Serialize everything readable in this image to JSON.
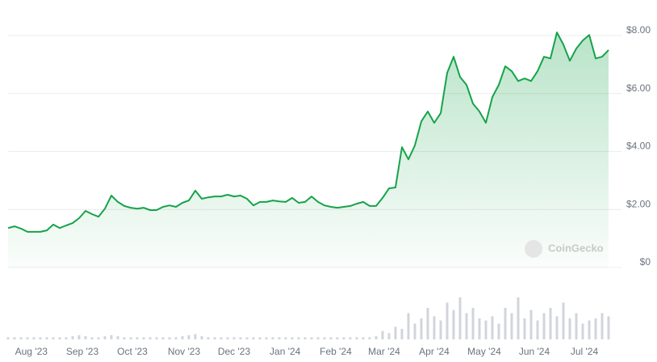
{
  "chart_data": {
    "type": "line",
    "color": "#16a34a",
    "grid": true,
    "watermark": "CoinGecko",
    "ylim": [
      0,
      8
    ],
    "yticks": [
      {
        "value": 0,
        "label": "$0"
      },
      {
        "value": 2,
        "label": "$2.00"
      },
      {
        "value": 4,
        "label": "$4.00"
      },
      {
        "value": 6,
        "label": "$6.00"
      },
      {
        "value": 8,
        "label": "$8.00"
      }
    ],
    "xlim": [
      0,
      93
    ],
    "xticks": [
      {
        "value": 3.6,
        "label": "Aug '23"
      },
      {
        "value": 11.5,
        "label": "Sep '23"
      },
      {
        "value": 19.25,
        "label": "Oct '23"
      },
      {
        "value": 27.25,
        "label": "Nov '23"
      },
      {
        "value": 35,
        "label": "Dec '23"
      },
      {
        "value": 42.9,
        "label": "Jan '24"
      },
      {
        "value": 50.75,
        "label": "Feb '24"
      },
      {
        "value": 58.25,
        "label": "Mar '24"
      },
      {
        "value": 66,
        "label": "Apr '24"
      },
      {
        "value": 73.75,
        "label": "May '24"
      },
      {
        "value": 81.5,
        "label": "Jun '24"
      },
      {
        "value": 89.25,
        "label": "Jul '24"
      }
    ],
    "values": [
      1.36,
      1.42,
      1.34,
      1.23,
      1.23,
      1.23,
      1.28,
      1.48,
      1.36,
      1.45,
      1.53,
      1.7,
      1.95,
      1.84,
      1.75,
      2.03,
      2.48,
      2.26,
      2.12,
      2.06,
      2.03,
      2.06,
      1.98,
      1.98,
      2.09,
      2.14,
      2.09,
      2.23,
      2.31,
      2.65,
      2.37,
      2.42,
      2.45,
      2.45,
      2.51,
      2.45,
      2.48,
      2.37,
      2.14,
      2.26,
      2.26,
      2.31,
      2.28,
      2.26,
      2.4,
      2.23,
      2.26,
      2.45,
      2.26,
      2.14,
      2.09,
      2.06,
      2.09,
      2.12,
      2.2,
      2.26,
      2.12,
      2.12,
      2.4,
      2.73,
      2.76,
      4.15,
      3.73,
      4.21,
      5.04,
      5.38,
      4.99,
      5.32,
      6.71,
      7.27,
      6.57,
      6.3,
      5.65,
      5.38,
      4.99,
      5.88,
      6.3,
      6.94,
      6.77,
      6.43,
      6.52,
      6.43,
      6.77,
      7.27,
      7.21,
      8.11,
      7.69,
      7.13,
      7.55,
      7.83,
      8.02,
      7.21,
      7.27,
      7.5
    ],
    "volume": [
      2,
      2,
      2,
      2,
      2,
      2,
      2,
      2,
      2,
      2,
      3,
      4,
      3,
      2,
      2,
      3,
      4,
      3,
      2,
      2,
      2,
      2,
      2,
      2,
      2,
      2,
      2,
      3,
      4,
      5,
      3,
      2,
      2,
      2,
      2,
      2,
      2,
      2,
      2,
      2,
      2,
      2,
      2,
      2,
      2,
      2,
      2,
      2,
      2,
      2,
      2,
      2,
      2,
      2,
      2,
      2,
      2,
      3,
      8,
      6,
      12,
      10,
      25,
      15,
      20,
      30,
      22,
      18,
      35,
      28,
      40,
      25,
      30,
      20,
      18,
      22,
      15,
      30,
      25,
      40,
      20,
      28,
      18,
      25,
      30,
      22,
      35,
      20,
      25,
      15,
      18,
      20,
      25,
      22
    ]
  }
}
